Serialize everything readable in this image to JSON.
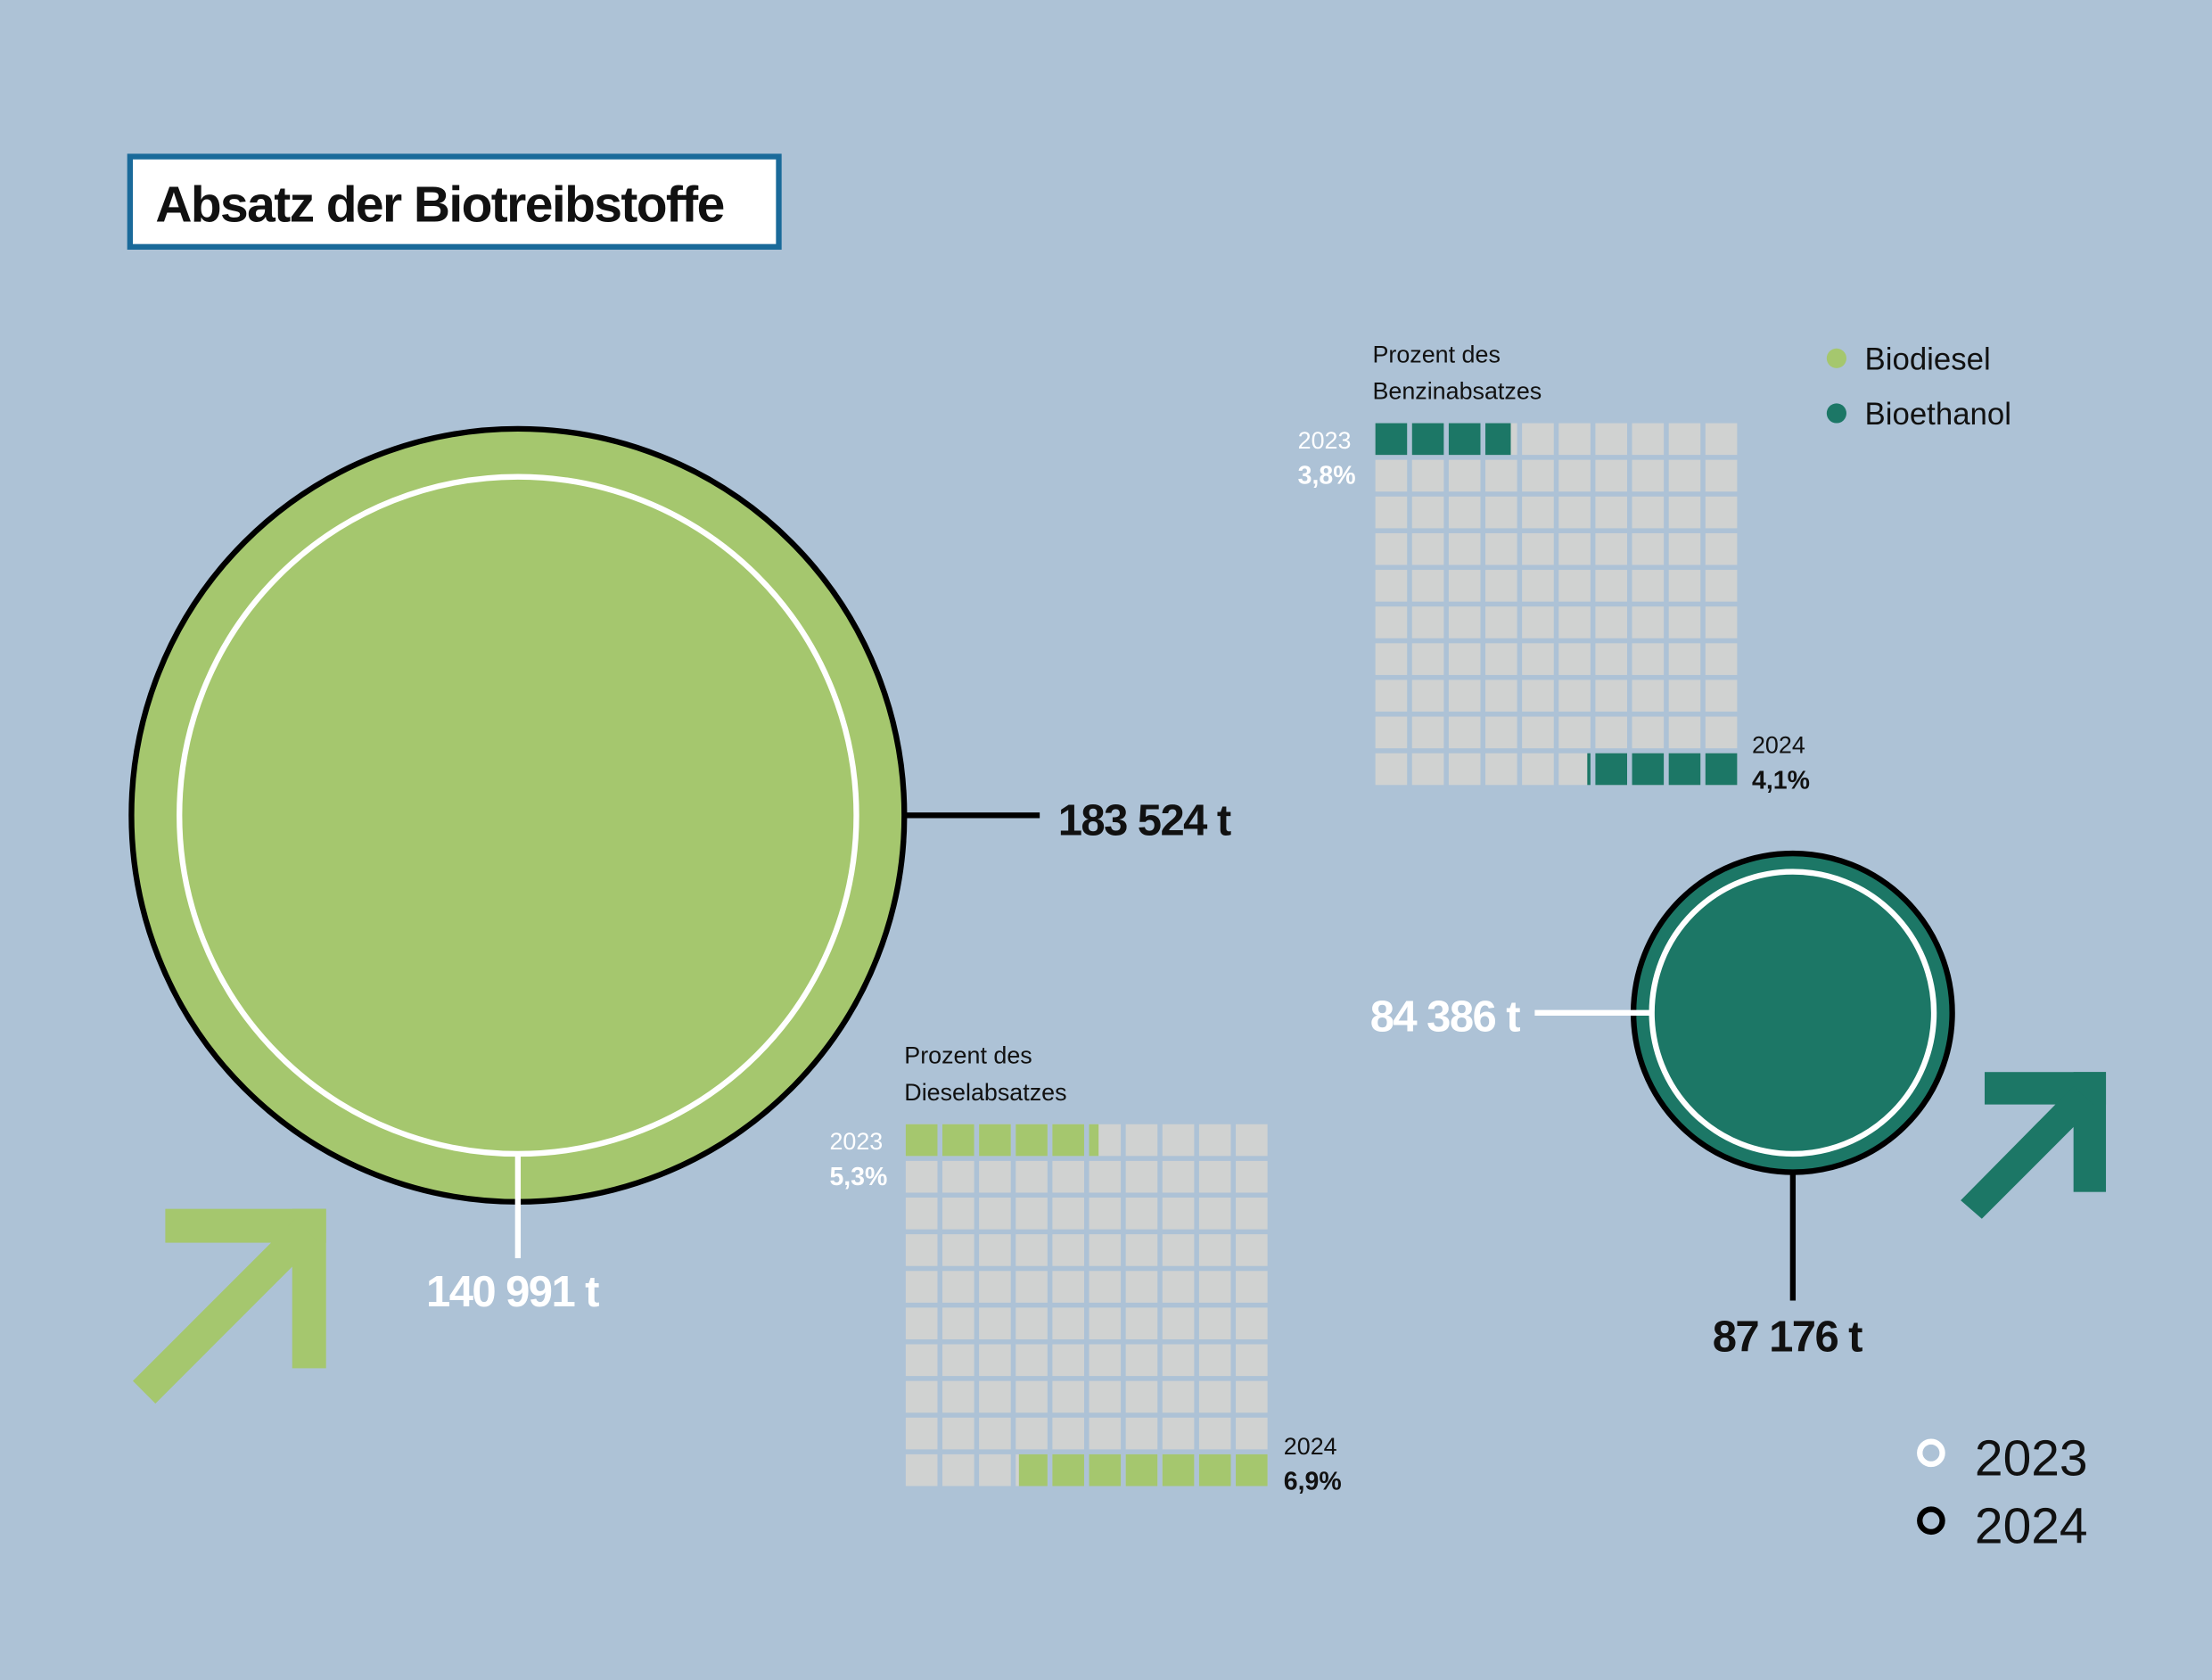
{
  "title": "Absatz der Biotreibstoffe",
  "colors": {
    "background": "#adc2d6",
    "biodiesel": "#a5c76e",
    "bioethanol": "#1c7766",
    "empty_cell": "#d0d2d1",
    "title_border": "#1a6a9a"
  },
  "legend_fuel": [
    {
      "label": "Biodiesel",
      "color": "#a5c76e"
    },
    {
      "label": "Bioethanol",
      "color": "#1c7766"
    }
  ],
  "legend_year": [
    {
      "label": "2023",
      "ring": "white"
    },
    {
      "label": "2024",
      "ring": "black"
    }
  ],
  "chart_data": [
    {
      "type": "bubble",
      "series": [
        {
          "name": "Biodiesel",
          "values": [
            {
              "year": "2023",
              "value": 140991,
              "label": "140 991 t"
            },
            {
              "year": "2024",
              "value": 183524,
              "label": "183 524 t"
            }
          ],
          "trend": "up"
        },
        {
          "name": "Bioethanol",
          "values": [
            {
              "year": "2023",
              "value": 84386,
              "label": "84 386 t"
            },
            {
              "year": "2024",
              "value": 87176,
              "label": "87 176 t"
            }
          ],
          "trend": "up"
        }
      ],
      "unit": "t"
    },
    {
      "type": "waffle",
      "title_lines": [
        "Prozent des",
        "Dieselabsatzes"
      ],
      "grid": [
        10,
        10
      ],
      "series": [
        {
          "year": "2023",
          "value": 5.3,
          "label": "5,3%"
        },
        {
          "year": "2024",
          "value": 6.9,
          "label": "6,9%"
        }
      ]
    },
    {
      "type": "waffle",
      "title_lines": [
        "Prozent des",
        "Benzinabsatzes"
      ],
      "grid": [
        10,
        10
      ],
      "series": [
        {
          "year": "2023",
          "value": 3.8,
          "label": "3,8%"
        },
        {
          "year": "2024",
          "value": 4.1,
          "label": "4,1%"
        }
      ]
    }
  ]
}
